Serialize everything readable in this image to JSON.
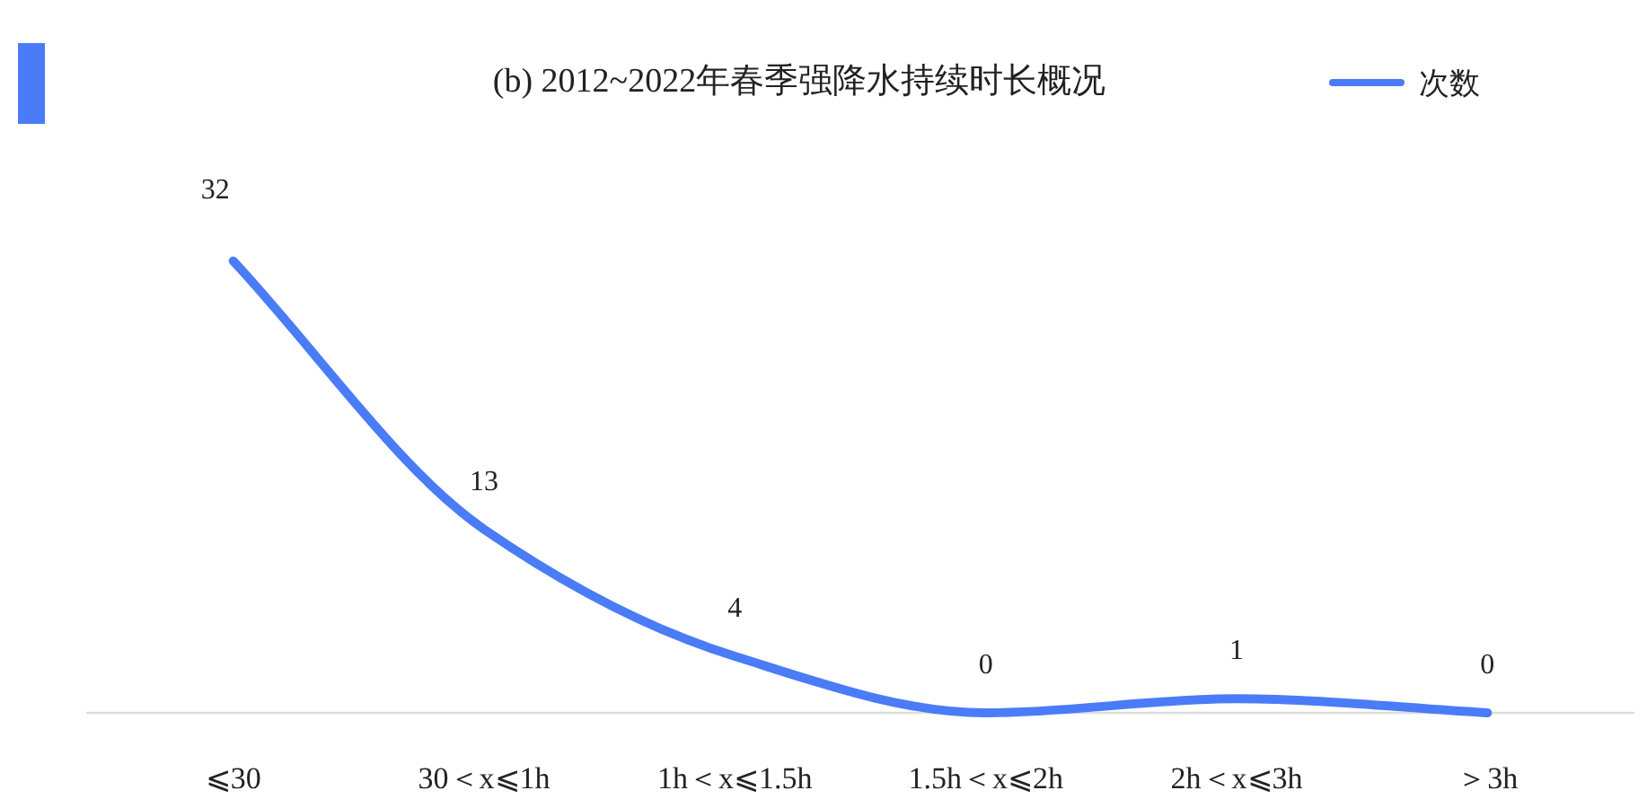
{
  "chart_data": {
    "type": "line",
    "title": "(b) 2012~2022年春季强降水持续时长概况",
    "categories": [
      "⩽30",
      "30＜x⩽1h",
      "1h＜x⩽1.5h",
      "1.5h＜x⩽2h",
      "2h＜x⩽3h",
      "＞3h"
    ],
    "series": [
      {
        "name": "次数",
        "color": "#4a7cf7",
        "values": [
          32,
          13,
          4,
          0,
          1,
          0
        ]
      }
    ],
    "data_labels": true,
    "legend": "top right",
    "grid": false,
    "marker": "none",
    "line_style": "solid"
  }
}
